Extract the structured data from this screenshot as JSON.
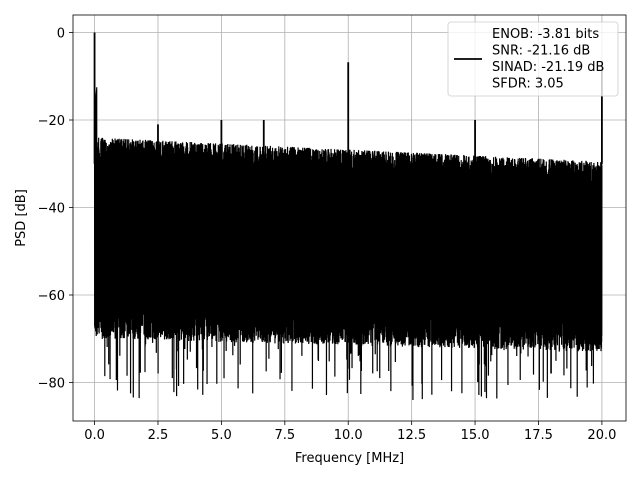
{
  "chart_data": {
    "type": "line",
    "title": "",
    "xlabel": "Frequency [MHz]",
    "ylabel": "PSD [dB]",
    "xlim": [
      -0.85,
      20.95
    ],
    "ylim": [
      -88.8,
      4.0
    ],
    "x_ticks": [
      0.0,
      2.5,
      5.0,
      7.5,
      10.0,
      12.5,
      15.0,
      17.5,
      20.0
    ],
    "x_tick_labels": [
      "0.0",
      "2.5",
      "5.0",
      "7.5",
      "10.0",
      "12.5",
      "15.0",
      "17.5",
      "20.0"
    ],
    "y_ticks": [
      0,
      -20,
      -40,
      -60,
      -80
    ],
    "y_tick_labels": [
      "0",
      "−20",
      "−40",
      "−60",
      "−80"
    ],
    "grid": true,
    "legend_position": "top-right",
    "line_color": "#000000",
    "series": [
      {
        "name": "ENOB: -3.81 bits\nSNR: -21.16 dB\nSINAD: -21.19 dB\nSFDR: 3.05",
        "legend_lines": [
          "ENOB: -3.81 bits",
          "SNR: -21.16 dB",
          "SINAD: -21.19 dB",
          "SFDR: 3.05"
        ],
        "x_range": [
          0.0,
          20.0
        ],
        "noise_band": {
          "top_start": -24.0,
          "top_end": -29.5,
          "floor_start": -66.0,
          "floor_end": -69.0,
          "deep_dips_min": -84.0
        },
        "spikes": [
          {
            "x": 0.0,
            "y": 0.0
          },
          {
            "x": 2.5,
            "y": -21.0
          },
          {
            "x": 5.0,
            "y": -20.0
          },
          {
            "x": 6.67,
            "y": -20.0
          },
          {
            "x": 10.0,
            "y": -6.8
          },
          {
            "x": 15.0,
            "y": -20.0
          },
          {
            "x": 20.0,
            "y": -6.5
          }
        ]
      }
    ]
  }
}
